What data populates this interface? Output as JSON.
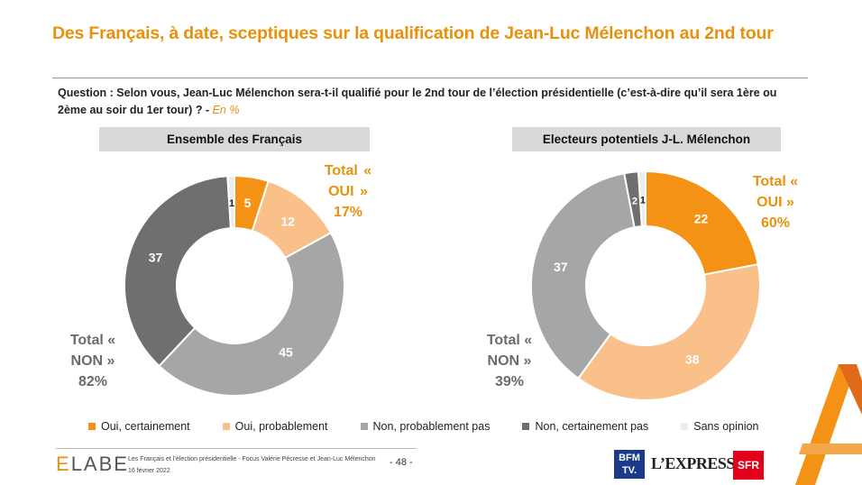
{
  "title": "Des Français, à date, sceptiques sur la qualification de Jean-Luc Mélenchon au 2nd tour",
  "question": {
    "text": "Question : Selon vous, Jean-Luc Mélenchon sera-t-il qualifié pour le 2nd tour de l’élection présidentielle (c’est-à-dire qu’il sera 1ère ou 2ème au soir du 1er tour) ? -",
    "unit": "En %"
  },
  "colors": {
    "oui_certainement": "#f39214",
    "oui_probablement": "#f9c08a",
    "non_probablement_pas": "#a6a6a6",
    "non_certainement_pas": "#6f6f6f",
    "sans_opinion": "#ececec"
  },
  "chart_data": [
    {
      "type": "pie",
      "donut": true,
      "title": "Ensemble des Français",
      "categories": [
        "Oui, certainement",
        "Oui, probablement",
        "Non, probablement pas",
        "Non, certainement pas",
        "Sans opinion"
      ],
      "values": [
        5,
        12,
        45,
        37,
        1
      ],
      "total_oui": {
        "label": "Total « OUI »",
        "value": "17%"
      },
      "total_non": {
        "label": "Total « NON »",
        "value": "82%"
      }
    },
    {
      "type": "pie",
      "donut": true,
      "title": "Electeurs potentiels J-L. Mélenchon",
      "categories": [
        "Oui, certainement",
        "Oui, probablement",
        "Non, probablement pas",
        "Non, certainement pas",
        "Sans opinion"
      ],
      "values": [
        22,
        38,
        37,
        2,
        1
      ],
      "total_oui": {
        "label": "Total « OUI »",
        "value": "60%"
      },
      "total_non": {
        "label": "Total « NON »",
        "value": "39%"
      }
    }
  ],
  "legend": [
    "Oui, certainement",
    "Oui, probablement",
    "Non, probablement pas",
    "Non, certainement pas",
    "Sans opinion"
  ],
  "footer": {
    "brand_e": "E",
    "brand_rest": "LABE",
    "line1": "Les Français et l’élection présidentielle - Focus Valérie Pécresse et Jean-Luc Mélenchon",
    "line2": "16 février 2022",
    "page": "- 48 -",
    "bfm": "BFM TV.",
    "lexpress": "L’EXPRESS",
    "sfr": "SFR"
  }
}
